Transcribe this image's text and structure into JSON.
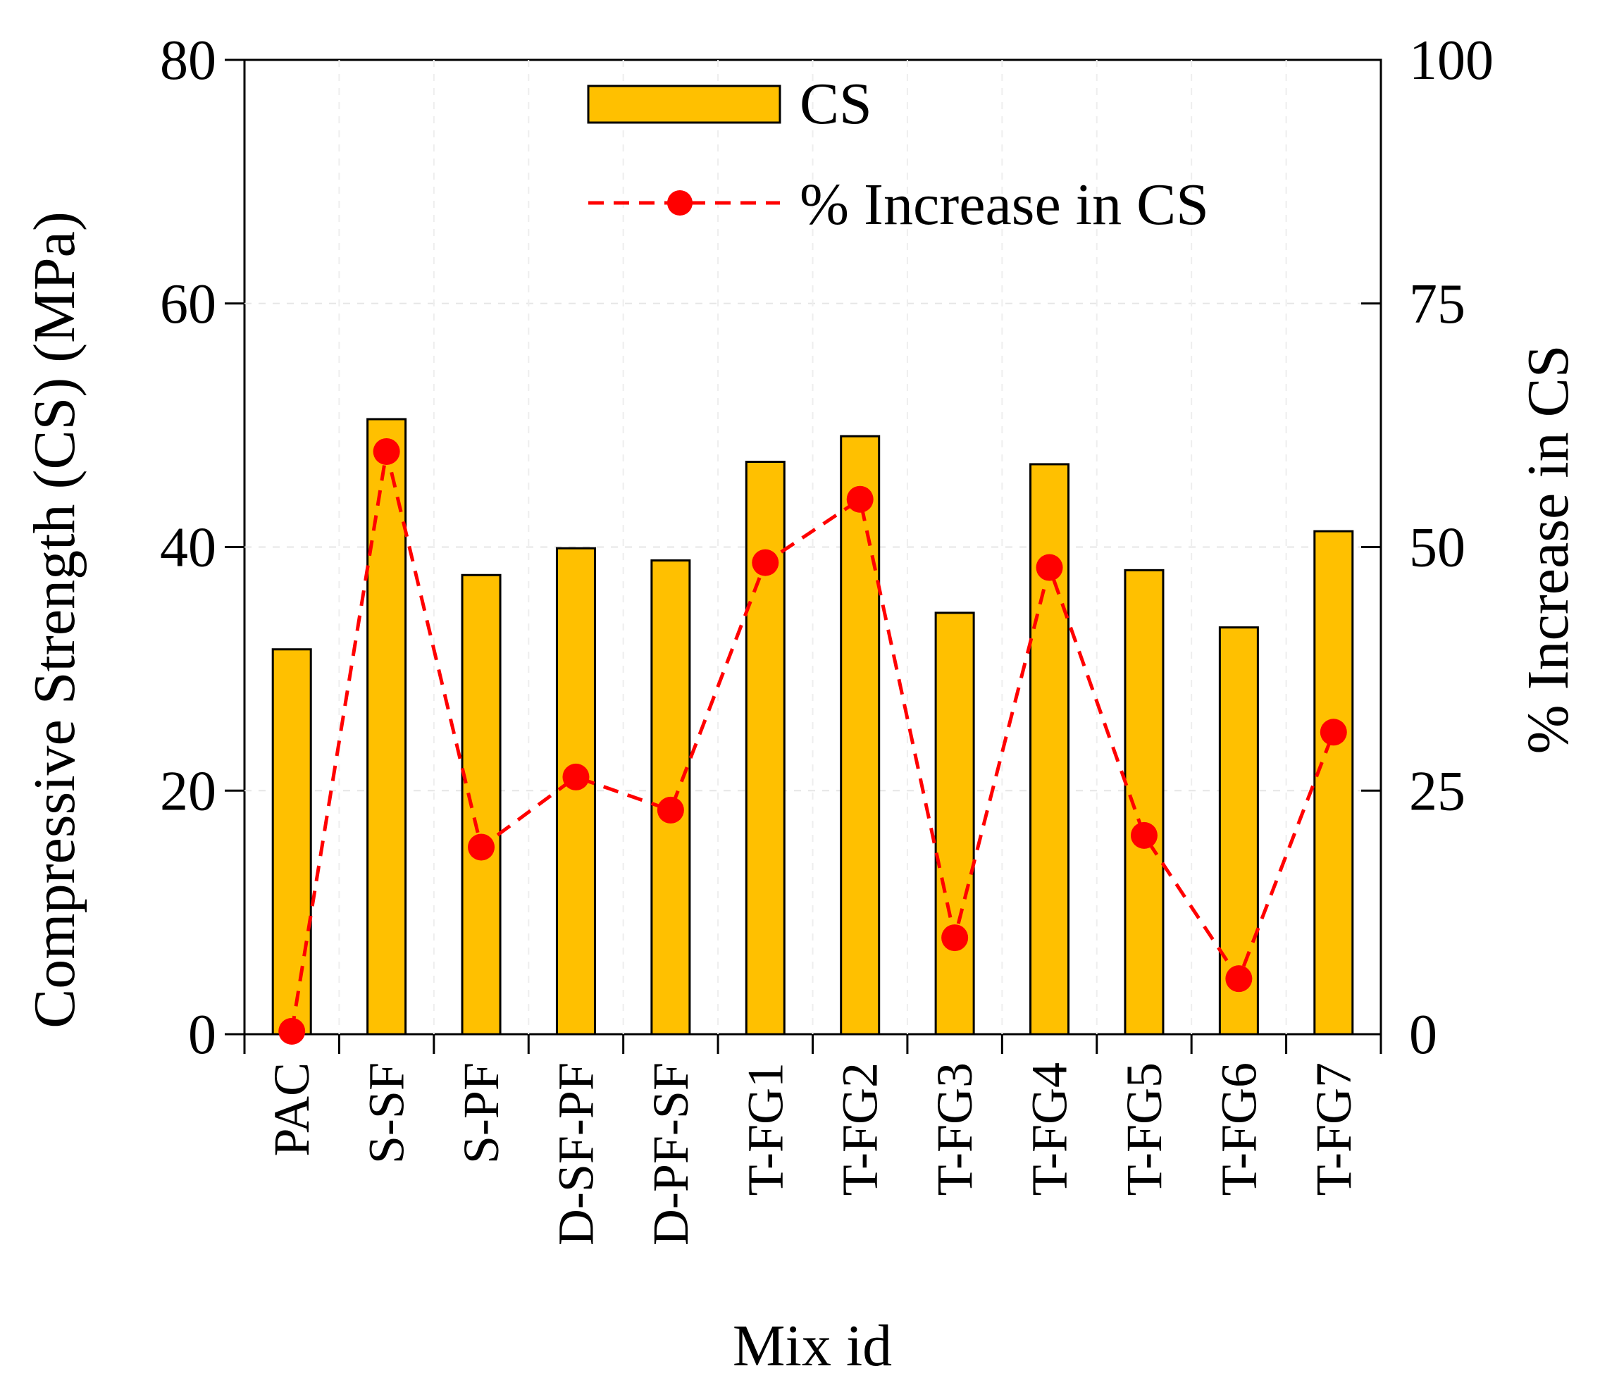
{
  "chart_data": {
    "type": "bar",
    "xlabel": "Mix id",
    "ylabel": "Compressive Strength (CS) (MPa)",
    "y2label": "% Increase in CS",
    "ylim": [
      0,
      80
    ],
    "y2lim": [
      0,
      100
    ],
    "yticks": [
      "0",
      "20",
      "40",
      "60",
      "80"
    ],
    "y2ticks": [
      "0",
      "25",
      "50",
      "75",
      "100"
    ],
    "categories": [
      "PAC",
      "S-SF",
      "S-PF",
      "D-SF-PF",
      "D-PF-SF",
      "T-FG1",
      "T-FG2",
      "T-FG3",
      "T-FG4",
      "T-FG5",
      "T-FG6",
      "T-FG7"
    ],
    "series": [
      {
        "name": "CS",
        "type": "bar",
        "axis": "left",
        "color": "#FFC000",
        "values": [
          31.6,
          50.5,
          37.7,
          39.9,
          38.9,
          47.0,
          49.1,
          34.6,
          46.8,
          38.1,
          33.4,
          41.3
        ]
      },
      {
        "name": "% Increase in CS",
        "type": "line",
        "axis": "right",
        "color": "#FF0000",
        "style": "dashed",
        "values": [
          0.3,
          59.8,
          19.2,
          26.4,
          23.0,
          48.4,
          54.9,
          9.9,
          47.9,
          20.4,
          5.7,
          31.0
        ]
      }
    ],
    "legend": {
      "position": "top-center"
    }
  }
}
